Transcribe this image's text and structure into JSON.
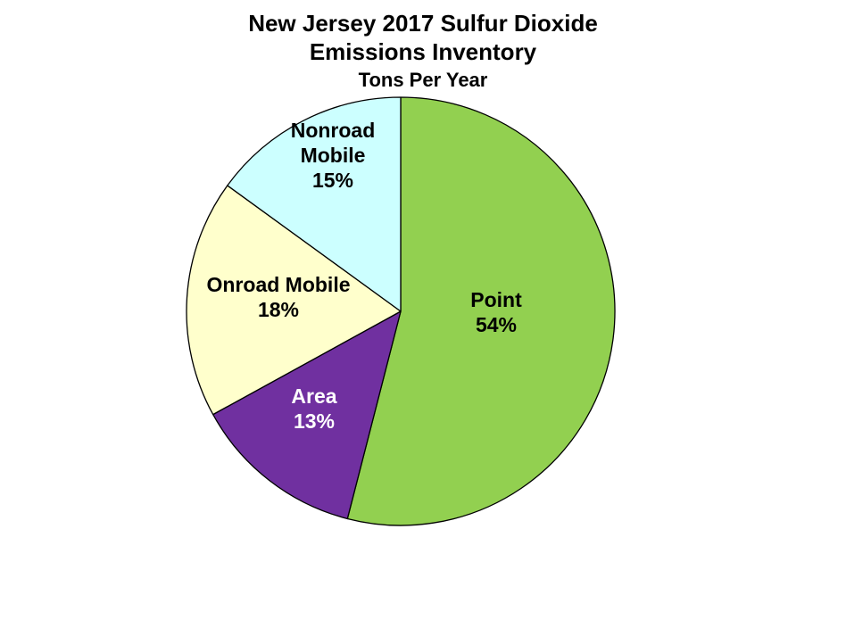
{
  "chart_data": {
    "type": "pie",
    "title": [
      "New Jersey 2017 Sulfur Dioxide",
      "Emissions Inventory"
    ],
    "subtitle": "Tons Per Year",
    "slices": [
      {
        "name": [
          "Point"
        ],
        "percent_label": "54%",
        "value": 54,
        "color": "#92d050",
        "label_color": "#000000"
      },
      {
        "name": [
          "Area"
        ],
        "percent_label": "13%",
        "value": 13,
        "color": "#7030a0",
        "label_color": "#ffffff"
      },
      {
        "name": [
          "Onroad Mobile"
        ],
        "percent_label": "18%",
        "value": 18,
        "color": "#ffffcc",
        "label_color": "#000000"
      },
      {
        "name": [
          "Nonroad",
          "Mobile"
        ],
        "percent_label": "15%",
        "value": 15,
        "color": "#ccffff",
        "label_color": "#000000"
      }
    ],
    "legend": "none",
    "start_angle_deg": 0,
    "direction": "clockwise"
  }
}
